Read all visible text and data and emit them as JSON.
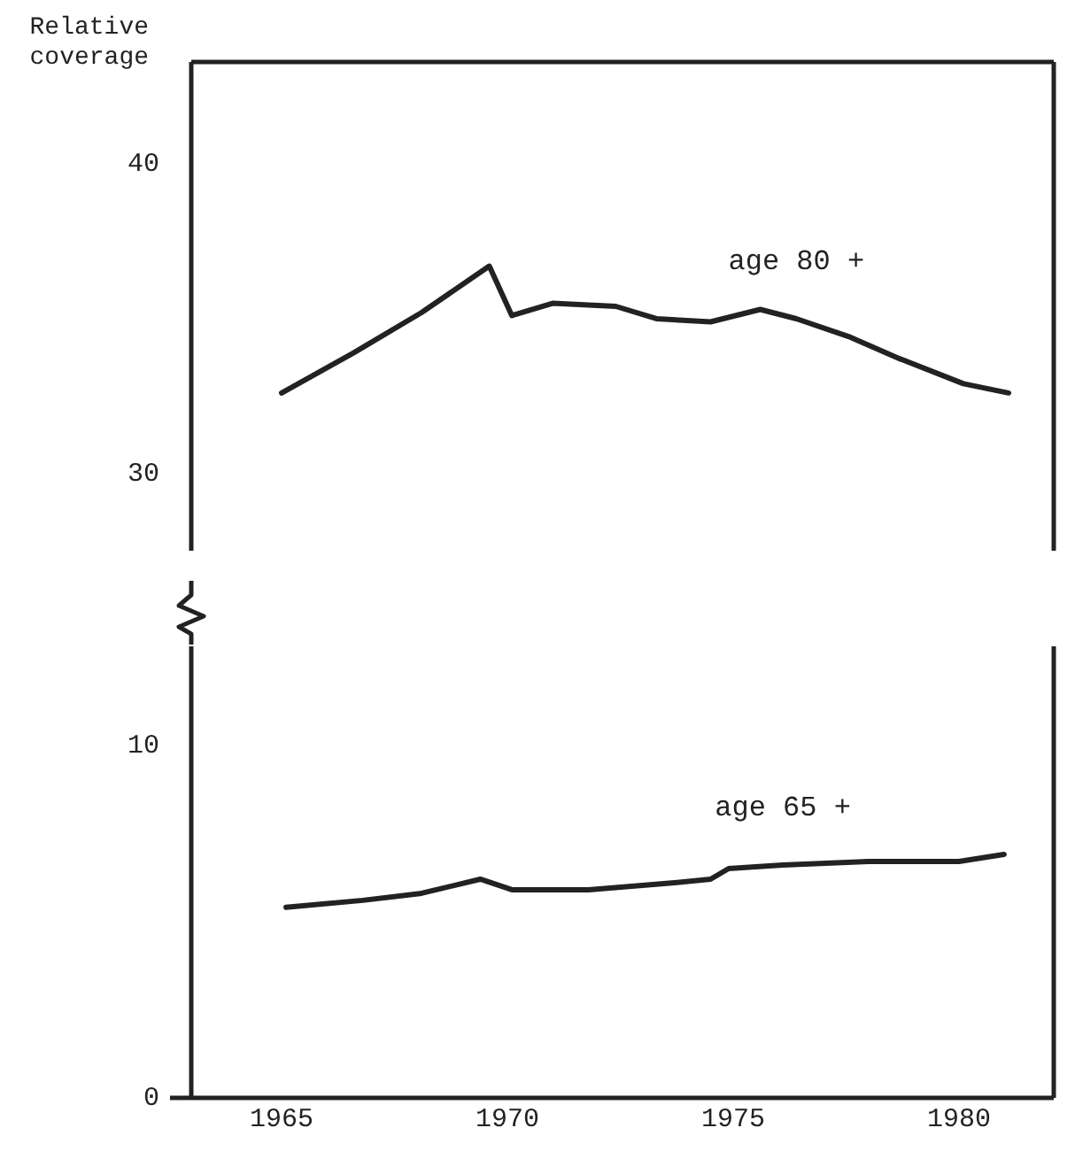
{
  "chart_data": [
    {
      "type": "line",
      "ylabel": "Relative coverage",
      "xlim": [
        1963,
        1982.1
      ],
      "xticks": [
        1965,
        1970,
        1975,
        1980
      ],
      "ylim": [
        27.5,
        43.3
      ],
      "yticks": [
        30,
        40
      ],
      "grid": false,
      "legend": false,
      "tick_labels": "y",
      "marker": "none",
      "line_style": "solid",
      "series": [
        {
          "name": "age 80 +",
          "color": "#222222",
          "x": [
            1965.0,
            1966.6,
            1968.1,
            1969.1,
            1969.6,
            1970.1,
            1971.0,
            1972.4,
            1973.3,
            1974.5,
            1975.6,
            1976.4,
            1977.6,
            1978.7,
            1980.1,
            1981.1
          ],
          "values": [
            32.6,
            33.9,
            35.2,
            36.2,
            36.7,
            35.1,
            35.5,
            35.4,
            35.0,
            34.9,
            35.3,
            35.0,
            34.4,
            33.7,
            32.9,
            32.6
          ]
        }
      ]
    },
    {
      "type": "line",
      "xlim": [
        1963,
        1982.1
      ],
      "xticks": [
        1965,
        1970,
        1975,
        1980
      ],
      "ylim": [
        0,
        12.8
      ],
      "yticks": [
        0,
        10
      ],
      "grid": false,
      "legend": false,
      "marker": "none",
      "line_style": "solid",
      "series": [
        {
          "name": "age 65 +",
          "color": "#222222",
          "x": [
            1965.1,
            1966.8,
            1968.1,
            1969.4,
            1970.1,
            1971.8,
            1973.7,
            1974.5,
            1974.9,
            1976.1,
            1978.0,
            1980.0,
            1981.0
          ],
          "values": [
            5.4,
            5.6,
            5.8,
            6.2,
            5.9,
            5.9,
            6.1,
            6.2,
            6.5,
            6.6,
            6.7,
            6.7,
            6.9
          ]
        }
      ]
    }
  ]
}
